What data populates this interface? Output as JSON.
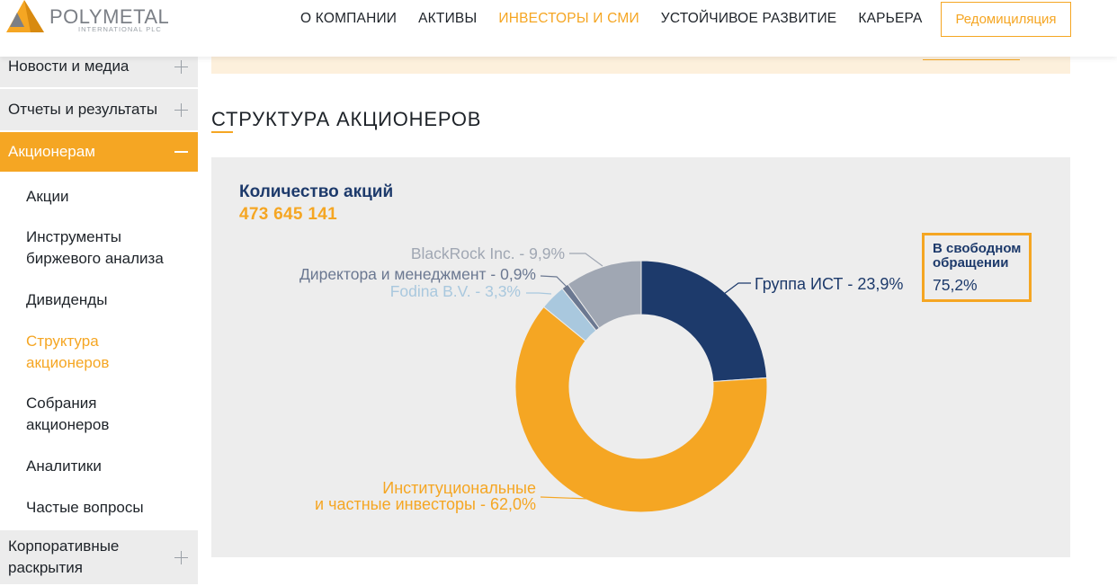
{
  "header": {
    "logo_text": "POLYMETAL",
    "logo_sub": "INTERNATIONAL PLC",
    "nav": [
      "О КОМПАНИИ",
      "АКТИВЫ",
      "ИНВЕСТОРЫ И СМИ",
      "УСТОЙЧИВОЕ РАЗВИТИЕ",
      "КАРЬЕРА"
    ],
    "active_nav": "ИНВЕСТОРЫ И СМИ",
    "redomiciliation_button": "Редомициляция"
  },
  "sidebar": {
    "items": [
      {
        "label": "Новости и медиа"
      },
      {
        "label": "Отчеты и результаты"
      },
      {
        "label": "Акционерам"
      }
    ],
    "sub_items": [
      {
        "label": "Акции"
      },
      {
        "label": "Инструменты биржевого анализа"
      },
      {
        "label": "Дивиденды"
      },
      {
        "label": "Структура акционеров"
      },
      {
        "label": "Собрания акционеров"
      },
      {
        "label": "Аналитики"
      },
      {
        "label": "Частые вопросы"
      }
    ],
    "bottom_item": {
      "label": "Корпоративные раскрытия"
    }
  },
  "main": {
    "section_title": "СТРУКТУРА АКЦИОНЕРОВ",
    "shares_label": "Количество акций",
    "shares_value": "473 645 141",
    "free_float_label": "В свободном обращении",
    "free_float_value": "75,2%"
  },
  "colors": {
    "accent": "#f5a623",
    "navy": "#1d3a6b",
    "grey_slice": "#a0a7b3",
    "steel_slice": "#6b7891",
    "light_blue_slice": "#a9c8de"
  },
  "chart_data": {
    "type": "pie",
    "donut": true,
    "slices": [
      {
        "name": "Группа ИСТ",
        "label": "Группа ИСТ - 23,9%",
        "value": 23.9,
        "color": "#1d3a6b"
      },
      {
        "name": "Институциональные и частные инвесторы",
        "label": "Институциональные и частные инвесторы - 62,0%",
        "label_line1": "Институциональные",
        "label_line2": "и частные инвесторы - 62,0%",
        "value": 62.0,
        "color": "#f5a623"
      },
      {
        "name": "Fodina B.V.",
        "label": "Fodina B.V. - 3,3%",
        "value": 3.3,
        "color": "#a9c8de"
      },
      {
        "name": "Директора и менеджмент",
        "label": "Директора и менеджмент - 0,9%",
        "value": 0.9,
        "color": "#6b7891"
      },
      {
        "name": "BlackRock Inc.",
        "label": "BlackRock Inc. - 9,9%",
        "value": 9.9,
        "color": "#a0a7b3"
      }
    ]
  }
}
